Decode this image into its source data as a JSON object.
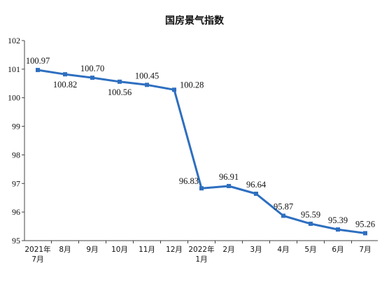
{
  "chart_data": {
    "type": "line",
    "title": "国房景气指数",
    "categories": [
      [
        "2021年",
        "7月"
      ],
      [
        "8月"
      ],
      [
        "9月"
      ],
      [
        "10月"
      ],
      [
        "11月"
      ],
      [
        "12月"
      ],
      [
        "2022年",
        "1月"
      ],
      [
        "2月"
      ],
      [
        "3月"
      ],
      [
        "4月"
      ],
      [
        "5月"
      ],
      [
        "6月"
      ],
      [
        "7月"
      ]
    ],
    "values": [
      100.97,
      100.82,
      100.7,
      100.56,
      100.45,
      100.28,
      96.83,
      96.91,
      96.64,
      95.87,
      95.59,
      95.39,
      95.26
    ],
    "data_labels": [
      "100.97",
      "100.82",
      "100.70",
      "100.56",
      "100.45",
      "100.28",
      "96.83",
      "96.91",
      "96.64",
      "95.87",
      "95.59",
      "95.39",
      "95.26"
    ],
    "label_positions": [
      "above",
      "below",
      "above",
      "below",
      "above",
      "right",
      "left",
      "above",
      "above",
      "above",
      "above",
      "above",
      "above"
    ],
    "ylim": [
      95,
      102
    ],
    "yticks": [
      "95",
      "96",
      "97",
      "98",
      "99",
      "100",
      "101",
      "102"
    ],
    "xlabel": "",
    "ylabel": "",
    "grid": false,
    "legend": "none",
    "line_color": "#2e6fc0"
  }
}
